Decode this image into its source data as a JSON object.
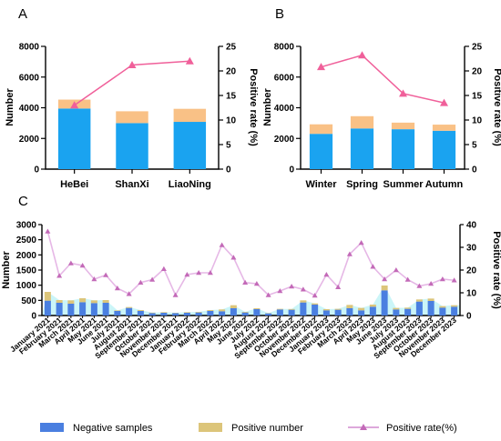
{
  "colors": {
    "negative": "#1aa3f0",
    "positive": "#f9c186",
    "rate": "#f0609a",
    "c_negative": "#4a7fe0",
    "c_positive": "#dcc57a",
    "c_rate_line": "#e6b8e6",
    "c_rate_marker": "#c36ab8",
    "c_band": "#b9f2f6"
  },
  "legend": {
    "negative": "Negative samples",
    "positive": "Positive number",
    "rate": "Positive rate(%)"
  },
  "chart_data": [
    {
      "panel": "A",
      "type": "bar",
      "stacked": true,
      "categories": [
        "HeBei",
        "ShanXi",
        "LiaoNing"
      ],
      "series": [
        {
          "name": "Negative samples",
          "values": [
            3950,
            3000,
            3080
          ]
        },
        {
          "name": "Positive number",
          "values": [
            580,
            770,
            850
          ]
        },
        {
          "name": "Positive rate(%)",
          "axis": "right",
          "type": "line",
          "values": [
            13.0,
            21.2,
            22.0
          ]
        }
      ],
      "ylabel": "Number",
      "y2label": "Positive rate (%)",
      "ylim": [
        0,
        8000
      ],
      "yticks": [
        0,
        2000,
        4000,
        6000,
        8000
      ],
      "y2lim": [
        0,
        25
      ],
      "y2ticks": [
        0,
        5,
        10,
        15,
        20,
        25
      ]
    },
    {
      "panel": "B",
      "type": "bar",
      "stacked": true,
      "categories": [
        "Winter",
        "Spring",
        "Summer",
        "Autumn"
      ],
      "series": [
        {
          "name": "Negative samples",
          "values": [
            2300,
            2650,
            2600,
            2500
          ]
        },
        {
          "name": "Positive number",
          "values": [
            620,
            800,
            430,
            400
          ]
        },
        {
          "name": "Positive rate(%)",
          "axis": "right",
          "type": "line",
          "values": [
            20.8,
            23.2,
            15.4,
            13.5
          ]
        }
      ],
      "ylabel": "Number",
      "y2label": "Positive rate (%)",
      "ylim": [
        0,
        8000
      ],
      "yticks": [
        0,
        2000,
        4000,
        6000,
        8000
      ],
      "y2lim": [
        0,
        25
      ],
      "y2ticks": [
        0,
        5,
        10,
        15,
        20,
        25
      ]
    },
    {
      "panel": "C",
      "type": "bar",
      "stacked": true,
      "categories": [
        "January 2021",
        "February 2021",
        "March 2021",
        "April 2021",
        "May 2021",
        "June 2021",
        "July 2021",
        "August 2021",
        "September 2021",
        "October 2021",
        "November 2021",
        "December 2021",
        "January 2022",
        "February 2022",
        "March 2022",
        "April 2022",
        "May 2022",
        "June 2022",
        "July 2022",
        "August 2022",
        "September 2022",
        "October 2022",
        "November 2022",
        "December 2022",
        "January 2023",
        "February 2023",
        "March 2023",
        "April 2023",
        "May 2023",
        "June 2023",
        "July 2023",
        "August 2023",
        "September 2023",
        "October 2023",
        "November 2023",
        "December 2023"
      ],
      "series": [
        {
          "name": "Negative samples",
          "values": [
            490,
            420,
            390,
            440,
            410,
            420,
            150,
            250,
            150,
            80,
            90,
            80,
            90,
            100,
            150,
            140,
            240,
            100,
            210,
            70,
            200,
            190,
            430,
            360,
            170,
            190,
            240,
            170,
            290,
            830,
            200,
            220,
            460,
            480,
            260,
            290
          ]
        },
        {
          "name": "Positive number",
          "values": [
            290,
            90,
            110,
            130,
            90,
            90,
            20,
            30,
            30,
            15,
            20,
            10,
            20,
            20,
            30,
            60,
            100,
            20,
            30,
            10,
            20,
            25,
            70,
            40,
            40,
            30,
            110,
            80,
            70,
            160,
            50,
            40,
            70,
            80,
            50,
            50
          ]
        },
        {
          "name": "Positive rate(%)",
          "axis": "right",
          "type": "line",
          "values": [
            37.0,
            17.5,
            23.0,
            22.0,
            16.0,
            17.8,
            12.0,
            9.5,
            14.5,
            15.8,
            20.5,
            9.0,
            18.0,
            18.8,
            18.8,
            31.0,
            25.5,
            14.5,
            14.0,
            9.0,
            10.8,
            12.8,
            11.5,
            8.8,
            18.0,
            12.5,
            27.0,
            32.0,
            21.5,
            16.0,
            20.0,
            15.8,
            13.0,
            14.0,
            16.0,
            15.5
          ]
        }
      ],
      "ylabel": "Number",
      "y2label": "Positive rate (%)",
      "ylim": [
        0,
        3000
      ],
      "yticks": [
        0,
        500,
        1000,
        1500,
        2000,
        2500,
        3000
      ],
      "y2lim": [
        0,
        40
      ],
      "y2ticks": [
        0,
        10,
        20,
        30,
        40
      ]
    }
  ]
}
